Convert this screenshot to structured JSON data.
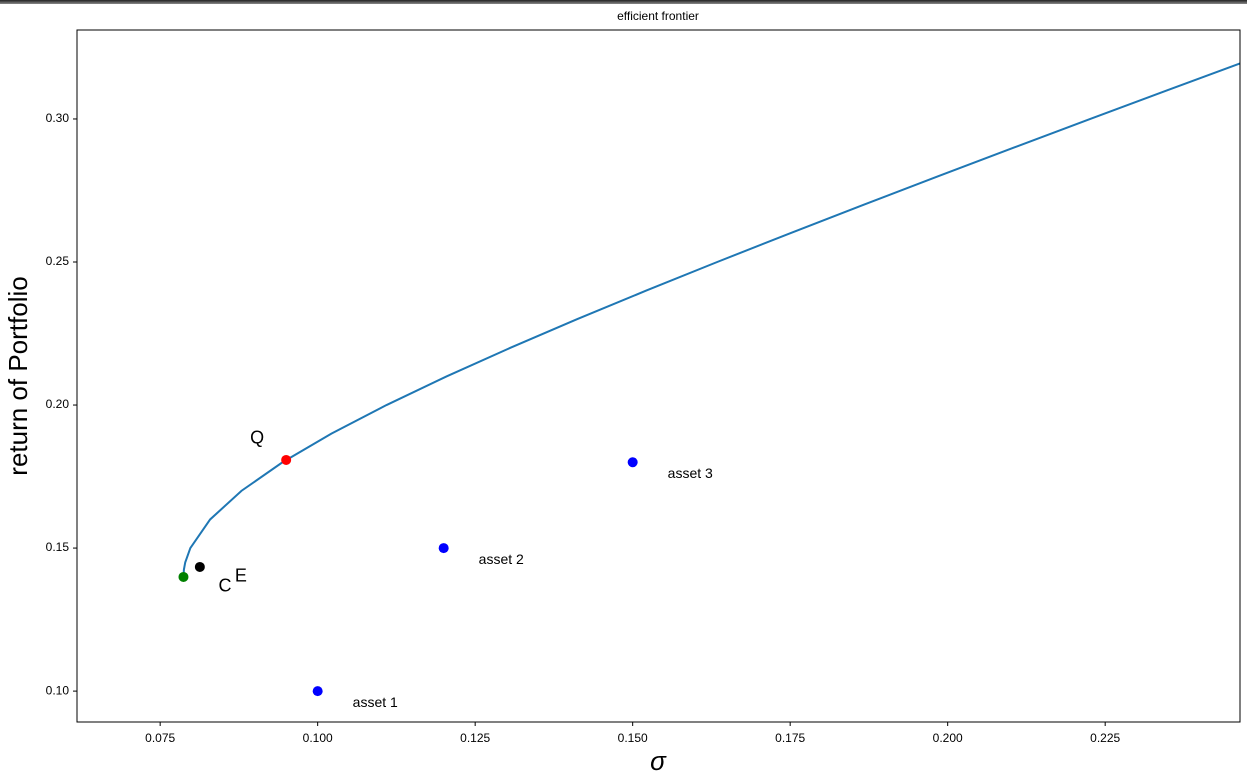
{
  "chart_data": {
    "type": "line",
    "title": "efficient frontier",
    "xlabel": "σ",
    "ylabel": "return of Portfolio",
    "xlim": [
      0.0618,
      0.2464
    ],
    "ylim": [
      0.0892,
      0.3311
    ],
    "xticks": [
      0.075,
      {
        "value": 0.1,
        "label": "0.100"
      },
      0.125,
      {
        "value": 0.15,
        "label": "0.150"
      },
      0.175,
      {
        "value": 0.2,
        "label": "0.200"
      },
      0.225
    ],
    "yticks": [
      {
        "value": 0.1,
        "label": "0.10"
      },
      0.15,
      {
        "value": 0.2,
        "label": "0.20"
      },
      0.25,
      {
        "value": 0.3,
        "label": "0.30"
      }
    ],
    "series": [
      {
        "color": "#1f77b4",
        "x": [
          0.0787,
          0.07877,
          0.07898,
          0.07979,
          0.08293,
          0.0879,
          0.09442,
          0.10218,
          0.11093,
          0.12045,
          0.13058,
          0.14117,
          0.15215,
          0.16342,
          0.17493,
          0.18664,
          0.19851,
          0.21051,
          0.22263,
          0.23484,
          0.24714
        ],
        "values": [
          0.14,
          0.1425,
          0.145,
          0.15,
          0.16,
          0.17,
          0.18,
          0.19,
          0.2,
          0.21,
          0.22,
          0.23,
          0.24,
          0.25,
          0.26,
          0.27,
          0.28,
          0.29,
          0.3,
          0.31,
          0.32
        ]
      }
    ],
    "points": [
      {
        "x": 0.1,
        "y": 0.1,
        "color": "#0000ff",
        "label": "asset 1"
      },
      {
        "x": 0.12,
        "y": 0.15,
        "color": "#0000ff",
        "label": "asset 2"
      },
      {
        "x": 0.15,
        "y": 0.18,
        "color": "#0000ff",
        "label": "asset 3"
      },
      {
        "x": 0.095,
        "y": 0.1808,
        "color": "#ff0000",
        "label": "Q"
      },
      {
        "x": 0.0787,
        "y": 0.1399,
        "color": "#008000",
        "label": "C"
      },
      {
        "x": 0.0813,
        "y": 0.1434,
        "color": "#000000",
        "label": "E"
      }
    ]
  }
}
